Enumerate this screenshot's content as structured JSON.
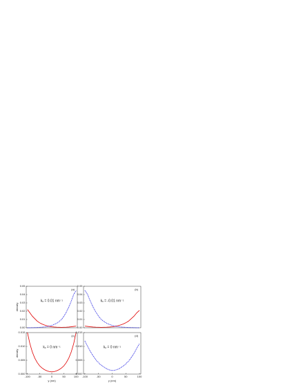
{
  "chart_data": [
    {
      "type": "line",
      "panel_label": "(a)",
      "annotation": "kₓ = 0.01 nm⁻¹",
      "ylabel": "density",
      "x": [
        -100,
        -90,
        -80,
        -70,
        -60,
        -50,
        -40,
        -30,
        -20,
        -10,
        0,
        10,
        20,
        30,
        40,
        50,
        60,
        70,
        80,
        90,
        100
      ],
      "xlim": [
        -105,
        105
      ],
      "ylim": [
        0,
        0.05
      ],
      "yticks": [
        {
          "value": 0,
          "label": "0.00"
        },
        {
          "value": 0.01,
          "label": "0.01"
        },
        {
          "value": 0.02,
          "label": "0.02"
        },
        {
          "value": 0.03,
          "label": "0.03"
        },
        {
          "value": 0.04,
          "label": "0.04"
        },
        {
          "value": 0.05,
          "label": "0.05"
        }
      ],
      "series": [
        {
          "color": "#e00000",
          "linestyle": "solid",
          "values": [
            0.022,
            0.018,
            0.014,
            0.011,
            0.008,
            0.006,
            0.0045,
            0.0033,
            0.0024,
            0.0017,
            0.0012,
            0.0009,
            0.0007,
            0.0006,
            0.0005,
            0.0006,
            0.0007,
            0.0009,
            0.0012,
            0.0016,
            0.002
          ]
        },
        {
          "color": "#0000dd",
          "linestyle": "dotted",
          "values": [
            0,
            0,
            0.0001,
            0.0002,
            0.0003,
            0.0005,
            0.0007,
            0.001,
            0.0014,
            0.002,
            0.0028,
            0.004,
            0.0055,
            0.0075,
            0.01,
            0.014,
            0.019,
            0.025,
            0.032,
            0.04,
            0.045
          ]
        }
      ]
    },
    {
      "type": "line",
      "panel_label": "(b)",
      "annotation": "kₓ = -0.01 nm⁻¹",
      "x": [
        -100,
        -90,
        -80,
        -70,
        -60,
        -50,
        -40,
        -30,
        -20,
        -10,
        0,
        10,
        20,
        30,
        40,
        50,
        60,
        70,
        80,
        90,
        100
      ],
      "xlim": [
        -105,
        105
      ],
      "ylim": [
        0,
        0.05
      ],
      "yticks": [
        {
          "value": 0,
          "label": "0.00"
        },
        {
          "value": 0.01,
          "label": "0.01"
        },
        {
          "value": 0.02,
          "label": "0.02"
        },
        {
          "value": 0.03,
          "label": "0.03"
        },
        {
          "value": 0.04,
          "label": "0.04"
        },
        {
          "value": 0.05,
          "label": "0.05"
        }
      ],
      "series": [
        {
          "color": "#e00000",
          "linestyle": "solid",
          "values": [
            0.002,
            0.0016,
            0.0012,
            0.0009,
            0.0007,
            0.0006,
            0.0005,
            0.0006,
            0.0007,
            0.0009,
            0.0012,
            0.0017,
            0.0024,
            0.0033,
            0.0045,
            0.006,
            0.008,
            0.011,
            0.014,
            0.018,
            0.021
          ]
        },
        {
          "color": "#0000dd",
          "linestyle": "dotted",
          "values": [
            0.045,
            0.04,
            0.032,
            0.025,
            0.019,
            0.014,
            0.01,
            0.0075,
            0.0055,
            0.004,
            0.0028,
            0.002,
            0.0014,
            0.001,
            0.0007,
            0.0005,
            0.0003,
            0.0002,
            0.0001,
            0,
            0
          ]
        }
      ]
    },
    {
      "type": "line",
      "panel_label": "(c)",
      "annotation": "kₓ = 0 nm⁻¹",
      "ylabel": "density",
      "xlabel": "y (nm)",
      "x": [
        -100,
        -90,
        -80,
        -70,
        -60,
        -50,
        -40,
        -30,
        -20,
        -10,
        0,
        10,
        20,
        30,
        40,
        50,
        60,
        70,
        80,
        90,
        100
      ],
      "xlim": [
        -105,
        105
      ],
      "ylim": [
        0,
        0.015
      ],
      "xticks": [
        -100,
        -50,
        0,
        50,
        100
      ],
      "yticks": [
        {
          "value": 0,
          "label": "0.000"
        },
        {
          "value": 0.005,
          "label": "0.005"
        },
        {
          "value": 0.01,
          "label": "0.010"
        },
        {
          "value": 0.015,
          "label": "0.015"
        }
      ],
      "series": [
        {
          "color": "#e00000",
          "linestyle": "solid",
          "values": [
            0.015,
            0.011,
            0.008,
            0.0058,
            0.0042,
            0.003,
            0.0022,
            0.0016,
            0.0012,
            0.0009,
            0.0008,
            0.0009,
            0.0012,
            0.0016,
            0.0022,
            0.003,
            0.0042,
            0.0058,
            0.008,
            0.011,
            0.015
          ]
        }
      ]
    },
    {
      "type": "line",
      "panel_label": "(d)",
      "annotation": "kₓ = 0 nm⁻¹",
      "xlabel": "y (nm)",
      "x": [
        -100,
        -90,
        -80,
        -70,
        -60,
        -50,
        -40,
        -30,
        -20,
        -10,
        0,
        10,
        20,
        30,
        40,
        50,
        60,
        70,
        80,
        90,
        100
      ],
      "xlim": [
        -105,
        105
      ],
      "ylim": [
        0,
        0.015
      ],
      "xticks": [
        -100,
        -50,
        0,
        50,
        100
      ],
      "yticks": [
        {
          "value": 0,
          "label": "0.000"
        },
        {
          "value": 0.005,
          "label": "0.005"
        },
        {
          "value": 0.01,
          "label": "0.010"
        },
        {
          "value": 0.015,
          "label": "0.015"
        }
      ],
      "series": [
        {
          "color": "#0000dd",
          "linestyle": "dotted",
          "values": [
            0.012,
            0.01,
            0.0082,
            0.0066,
            0.0052,
            0.0041,
            0.0032,
            0.0025,
            0.0019,
            0.0015,
            0.0013,
            0.0014,
            0.0017,
            0.0022,
            0.0029,
            0.0037,
            0.0047,
            0.006,
            0.0075,
            0.0093,
            0.011
          ]
        }
      ]
    }
  ]
}
